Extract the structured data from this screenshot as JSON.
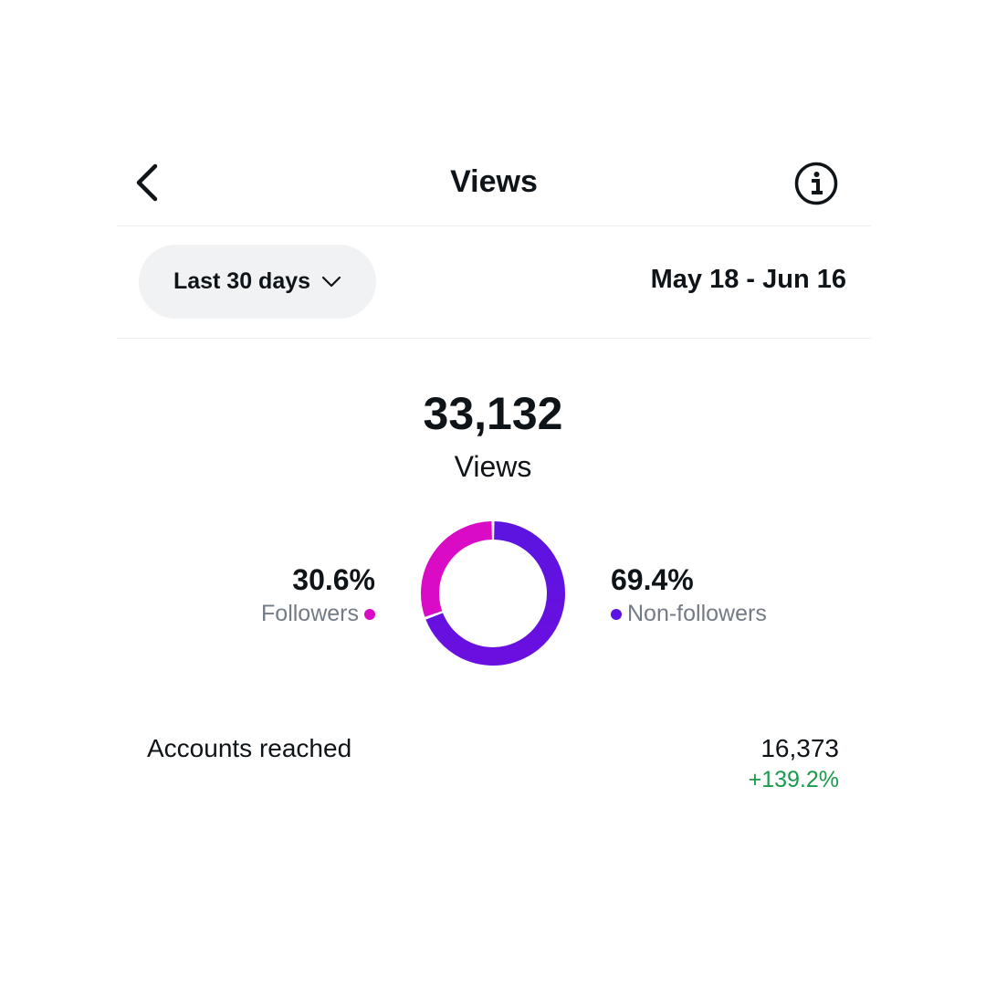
{
  "header": {
    "title": "Views"
  },
  "filter": {
    "range_label": "Last 30 days",
    "date_range": "May 18 - Jun 16"
  },
  "summary": {
    "total": "33,132",
    "label": "Views"
  },
  "chart_data": {
    "type": "pie",
    "categories": [
      "Followers",
      "Non-followers"
    ],
    "values": [
      30.6,
      69.4
    ],
    "value_labels": [
      "30.6%",
      "69.4%"
    ],
    "colors": [
      "#d90bc5",
      "#5c14e0"
    ]
  },
  "breakdown": {
    "followers": {
      "pct": "30.6%",
      "label": "Followers"
    },
    "non_followers": {
      "pct": "69.4%",
      "label": "Non-followers"
    }
  },
  "reach": {
    "label": "Accounts reached",
    "value": "16,373",
    "change": "+139.2%"
  },
  "icons": {
    "back": "chevron-left-icon",
    "info": "info-icon",
    "range_dropdown": "chevron-down-icon"
  }
}
